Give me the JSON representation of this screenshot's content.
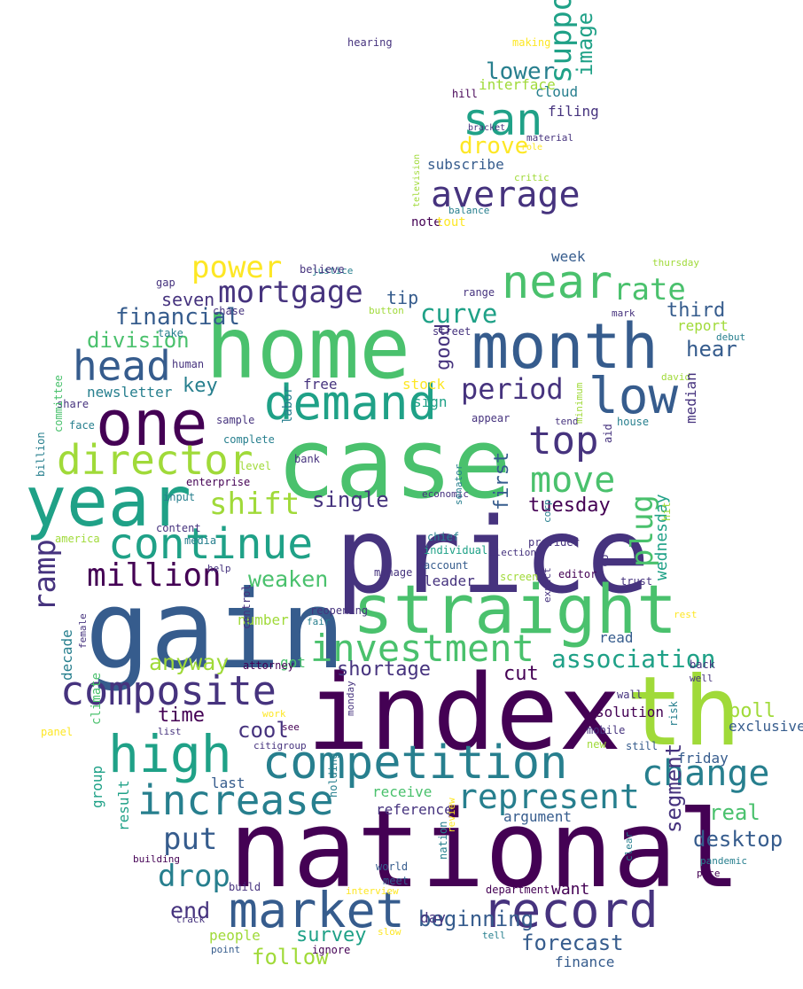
{
  "palette": {
    "dark_purple": "#440154",
    "purple": "#46337e",
    "indigo": "#365c8d",
    "blue": "#277f8e",
    "teal": "#1fa187",
    "green": "#4ac16d",
    "lime": "#a0da39",
    "yellow": "#fde725"
  },
  "words": [
    {
      "text": "national"
    },
    {
      "text": "index"
    },
    {
      "text": "price"
    },
    {
      "text": "gain"
    },
    {
      "text": "case"
    },
    {
      "text": "home"
    },
    {
      "text": "th"
    },
    {
      "text": "straight"
    },
    {
      "text": "year"
    },
    {
      "text": "month"
    },
    {
      "text": "one"
    },
    {
      "text": "market"
    },
    {
      "text": "record"
    },
    {
      "text": "competition"
    },
    {
      "text": "high"
    },
    {
      "text": "demand"
    },
    {
      "text": "composite"
    },
    {
      "text": "near"
    },
    {
      "text": "increase"
    },
    {
      "text": "low"
    },
    {
      "text": "continue"
    },
    {
      "text": "investment"
    },
    {
      "text": "director"
    },
    {
      "text": "san"
    },
    {
      "text": "represent"
    },
    {
      "text": "top"
    },
    {
      "text": "change"
    },
    {
      "text": "head"
    },
    {
      "text": "mortgage"
    },
    {
      "text": "million"
    },
    {
      "text": "move"
    },
    {
      "text": "shift"
    },
    {
      "text": "period"
    },
    {
      "text": "average"
    },
    {
      "text": "put"
    },
    {
      "text": "drop"
    },
    {
      "text": "rate"
    },
    {
      "text": "power"
    },
    {
      "text": "curve"
    },
    {
      "text": "association"
    },
    {
      "text": "anyway"
    },
    {
      "text": "shortage"
    },
    {
      "text": "cut"
    },
    {
      "text": "single"
    },
    {
      "text": "weaken"
    },
    {
      "text": "tuesday"
    },
    {
      "text": "financial"
    },
    {
      "text": "division"
    },
    {
      "text": "follow"
    },
    {
      "text": "forecast"
    },
    {
      "text": "survey"
    },
    {
      "text": "lower"
    },
    {
      "text": "drove"
    },
    {
      "text": "end"
    },
    {
      "text": "beginning"
    },
    {
      "text": "desktop"
    },
    {
      "text": "real"
    },
    {
      "text": "time"
    },
    {
      "text": "cool"
    },
    {
      "text": "poll"
    },
    {
      "text": "want"
    },
    {
      "text": "key"
    },
    {
      "text": "hear"
    },
    {
      "text": "third"
    },
    {
      "text": "tip"
    },
    {
      "text": "seven"
    },
    {
      "text": "newsletter"
    },
    {
      "text": "free"
    },
    {
      "text": "sign"
    },
    {
      "text": "stock"
    },
    {
      "text": "leader"
    },
    {
      "text": "read"
    },
    {
      "text": "got"
    },
    {
      "text": "solution"
    },
    {
      "text": "exclusive"
    },
    {
      "text": "friday"
    },
    {
      "text": "last"
    },
    {
      "text": "receive"
    },
    {
      "text": "argument"
    },
    {
      "text": "reference"
    },
    {
      "text": "day"
    },
    {
      "text": "people"
    },
    {
      "text": "finance"
    },
    {
      "text": "subscribe"
    },
    {
      "text": "cloud"
    },
    {
      "text": "filing"
    },
    {
      "text": "interface"
    },
    {
      "text": "week"
    },
    {
      "text": "report"
    },
    {
      "text": "number"
    },
    {
      "text": "build"
    },
    {
      "text": "department"
    },
    {
      "text": "world"
    },
    {
      "text": "meet"
    },
    {
      "text": "manage"
    },
    {
      "text": "reopening"
    },
    {
      "text": "provider"
    },
    {
      "text": "editor"
    },
    {
      "text": "trust"
    },
    {
      "text": "mobile"
    },
    {
      "text": "new"
    },
    {
      "text": "attorney"
    },
    {
      "text": "content"
    },
    {
      "text": "media"
    },
    {
      "text": "enterprise"
    },
    {
      "text": "complete"
    },
    {
      "text": "house"
    },
    {
      "text": "appear"
    },
    {
      "text": "range"
    },
    {
      "text": "street"
    },
    {
      "text": "chase"
    },
    {
      "text": "gap"
    },
    {
      "text": "take"
    },
    {
      "text": "human"
    },
    {
      "text": "share"
    },
    {
      "text": "face"
    },
    {
      "text": "input"
    },
    {
      "text": "america"
    },
    {
      "text": "chief"
    },
    {
      "text": "individual"
    },
    {
      "text": "account"
    },
    {
      "text": "screen"
    },
    {
      "text": "sample"
    },
    {
      "text": "bank"
    },
    {
      "text": "level"
    },
    {
      "text": "economic"
    },
    {
      "text": "election"
    },
    {
      "text": "help"
    },
    {
      "text": "fair"
    },
    {
      "text": "work"
    },
    {
      "text": "list"
    },
    {
      "text": "see"
    },
    {
      "text": "citigroup"
    },
    {
      "text": "panel"
    },
    {
      "text": "tend"
    },
    {
      "text": "wall"
    },
    {
      "text": "still"
    },
    {
      "text": "back"
    },
    {
      "text": "well"
    },
    {
      "text": "rest"
    },
    {
      "text": "pandemic"
    },
    {
      "text": "pace"
    },
    {
      "text": "building"
    },
    {
      "text": "interview"
    },
    {
      "text": "slow"
    },
    {
      "text": "tell"
    },
    {
      "text": "track"
    },
    {
      "text": "point"
    },
    {
      "text": "ignore"
    },
    {
      "text": "button"
    },
    {
      "text": "mark"
    },
    {
      "text": "debut"
    },
    {
      "text": "david"
    },
    {
      "text": "justice"
    },
    {
      "text": "believe"
    },
    {
      "text": "thursday"
    },
    {
      "text": "hearing"
    },
    {
      "text": "making"
    },
    {
      "text": "hill"
    },
    {
      "text": "material"
    },
    {
      "text": "role"
    },
    {
      "text": "critic"
    },
    {
      "text": "balance"
    },
    {
      "text": "note"
    },
    {
      "text": "tout"
    },
    {
      "text": "bracket"
    },
    {
      "text": "ramp"
    },
    {
      "text": "plug"
    },
    {
      "text": "support"
    },
    {
      "text": "image"
    },
    {
      "text": "segment"
    },
    {
      "text": "first"
    },
    {
      "text": "good"
    },
    {
      "text": "wednesday"
    },
    {
      "text": "median"
    },
    {
      "text": "result"
    },
    {
      "text": "group"
    },
    {
      "text": "climate"
    },
    {
      "text": "decade"
    },
    {
      "text": "labor"
    },
    {
      "text": "control"
    },
    {
      "text": "committee"
    },
    {
      "text": "billion"
    },
    {
      "text": "female"
    },
    {
      "text": "expect"
    },
    {
      "text": "co"
    },
    {
      "text": "aid"
    },
    {
      "text": "hit"
    },
    {
      "text": "corp"
    },
    {
      "text": "minimum"
    },
    {
      "text": "senator"
    },
    {
      "text": "monday"
    },
    {
      "text": "holding"
    },
    {
      "text": "review"
    },
    {
      "text": "nation"
    },
    {
      "text": "risk"
    },
    {
      "text": "clear"
    },
    {
      "text": "television"
    }
  ]
}
